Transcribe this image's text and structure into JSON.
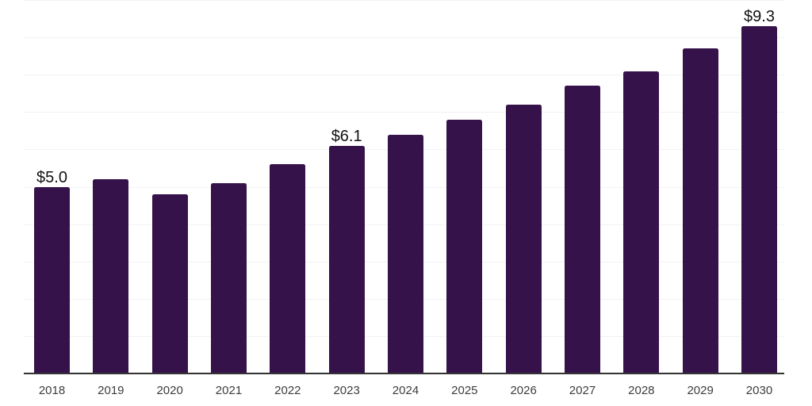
{
  "chart_data": {
    "type": "bar",
    "title": "",
    "xlabel": "",
    "ylabel": "",
    "categories": [
      "2018",
      "2019",
      "2020",
      "2021",
      "2022",
      "2023",
      "2024",
      "2025",
      "2026",
      "2027",
      "2028",
      "2029",
      "2030"
    ],
    "values": [
      5.0,
      5.2,
      4.8,
      5.1,
      5.6,
      6.1,
      6.4,
      6.8,
      7.2,
      7.7,
      8.1,
      8.7,
      9.3
    ],
    "value_labels": [
      "$5.0",
      "",
      "",
      "",
      "",
      "$6.1",
      "",
      "",
      "",
      "",
      "",
      "",
      "$9.3"
    ],
    "currency_prefix": "$",
    "ylim": [
      0,
      10
    ],
    "gridline_step": 1,
    "grid": "horizontal",
    "legend": "none",
    "colors": {
      "bar": "#36124B",
      "gridline": "#f2f2f2",
      "axis_line": "#333333",
      "tick_label": "#3d3d3d",
      "value_label": "#111111",
      "background": "#ffffff"
    }
  }
}
